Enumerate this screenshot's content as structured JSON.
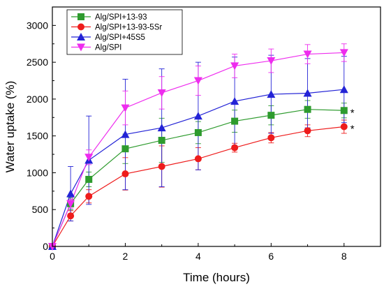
{
  "chart_data": {
    "type": "line",
    "title": "",
    "xlabel": "Time (hours)",
    "ylabel": "Water uptake (%)",
    "xlim": [
      0,
      9
    ],
    "ylim": [
      0,
      3250
    ],
    "xticks": [
      0,
      2,
      4,
      6,
      8
    ],
    "xtick_labels": [
      "0",
      "2",
      "4",
      "6",
      "8"
    ],
    "yticks": [
      0,
      500,
      1000,
      1500,
      2000,
      2500,
      3000
    ],
    "ytick_labels": [
      "0",
      "500",
      "1000",
      "1500",
      "2000",
      "2500",
      "3000"
    ],
    "grid": false,
    "legend_position": "top-left",
    "x": [
      0,
      0.5,
      1,
      2,
      3,
      4,
      5,
      6,
      7,
      8
    ],
    "series": [
      {
        "name": "Alg/SPI+13-93",
        "color": "#2e9b2e",
        "marker": "square",
        "values": [
          0,
          580,
          910,
          1325,
          1440,
          1545,
          1700,
          1780,
          1860,
          1845
        ],
        "errors": [
          0,
          80,
          100,
          200,
          300,
          150,
          150,
          130,
          120,
          100
        ]
      },
      {
        "name": "Alg/SPI+13-93-5Sr",
        "color": "#ee1c1c",
        "marker": "circle",
        "values": [
          0,
          415,
          680,
          985,
          1085,
          1190,
          1340,
          1475,
          1570,
          1625
        ],
        "errors": [
          0,
          70,
          90,
          220,
          280,
          150,
          60,
          70,
          80,
          90
        ]
      },
      {
        "name": "Alg/SPI+45S5",
        "color": "#2323d6",
        "marker": "triangle-up",
        "values": [
          0,
          715,
          1170,
          1520,
          1610,
          1770,
          1970,
          2065,
          2080,
          2130
        ],
        "errors": [
          0,
          370,
          600,
          750,
          800,
          730,
          600,
          530,
          470,
          450
        ]
      },
      {
        "name": "Alg/SPI",
        "color": "#ee2cee",
        "marker": "triangle-down",
        "values": [
          0,
          580,
          1210,
          1880,
          2085,
          2250,
          2450,
          2520,
          2610,
          2630
        ],
        "errors": [
          0,
          60,
          100,
          230,
          220,
          200,
          160,
          160,
          130,
          120
        ]
      }
    ],
    "annotations": [
      {
        "text": "*",
        "x": 8,
        "series": "Alg/SPI+13-93"
      },
      {
        "text": "*",
        "x": 8,
        "series": "Alg/SPI+13-93-5Sr"
      }
    ]
  }
}
